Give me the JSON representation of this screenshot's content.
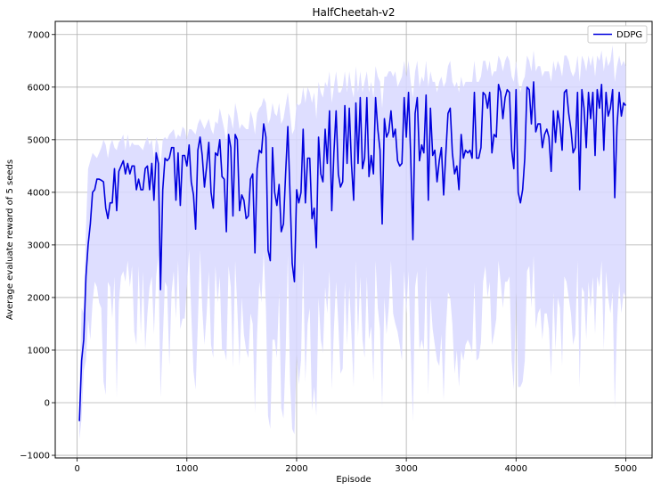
{
  "chart_data": {
    "type": "line",
    "title": "HalfCheetah-v2",
    "xlabel": "Episode",
    "ylabel": "Average evaluate reward of 5 seeds",
    "xlim": [
      -200,
      5240
    ],
    "ylim": [
      -1050,
      7250
    ],
    "xticks": [
      0,
      1000,
      2000,
      3000,
      4000,
      5000
    ],
    "yticks": [
      -1000,
      0,
      1000,
      2000,
      3000,
      4000,
      5000,
      6000,
      7000
    ],
    "xtick_labels": [
      "0",
      "1000",
      "2000",
      "3000",
      "4000",
      "5000"
    ],
    "ytick_labels": [
      "−1000",
      "0",
      "1000",
      "2000",
      "3000",
      "4000",
      "5000",
      "6000",
      "7000"
    ],
    "grid": true,
    "legend_position": "top-right",
    "series": [
      {
        "name": "DDPG",
        "color": "#0000dd",
        "band_color": "#d8d8ff",
        "x": [
          20,
          40,
          60,
          80,
          100,
          120,
          140,
          160,
          180,
          200,
          220,
          240,
          260,
          280,
          300,
          320,
          340,
          360,
          380,
          400,
          420,
          440,
          460,
          480,
          500,
          520,
          540,
          560,
          580,
          600,
          620,
          640,
          660,
          680,
          700,
          720,
          740,
          760,
          780,
          800,
          820,
          840,
          860,
          880,
          900,
          920,
          940,
          960,
          980,
          1000,
          1020,
          1040,
          1060,
          1080,
          1100,
          1120,
          1140,
          1160,
          1180,
          1200,
          1220,
          1240,
          1260,
          1280,
          1300,
          1320,
          1340,
          1360,
          1380,
          1400,
          1420,
          1440,
          1460,
          1480,
          1500,
          1520,
          1540,
          1560,
          1580,
          1600,
          1620,
          1640,
          1660,
          1680,
          1700,
          1720,
          1740,
          1760,
          1780,
          1800,
          1820,
          1840,
          1860,
          1880,
          1900,
          1920,
          1940,
          1960,
          1980,
          2000,
          2020,
          2040,
          2060,
          2080,
          2100,
          2120,
          2140,
          2160,
          2180,
          2200,
          2220,
          2240,
          2260,
          2280,
          2300,
          2320,
          2340,
          2360,
          2380,
          2400,
          2420,
          2440,
          2460,
          2480,
          2500,
          2520,
          2540,
          2560,
          2580,
          2600,
          2620,
          2640,
          2660,
          2680,
          2700,
          2720,
          2740,
          2760,
          2780,
          2800,
          2820,
          2840,
          2860,
          2880,
          2900,
          2920,
          2940,
          2960,
          2980,
          3000,
          3020,
          3040,
          3060,
          3080,
          3100,
          3120,
          3140,
          3160,
          3180,
          3200,
          3220,
          3240,
          3260,
          3280,
          3300,
          3320,
          3340,
          3360,
          3380,
          3400,
          3420,
          3440,
          3460,
          3480,
          3500,
          3520,
          3540,
          3560,
          3580,
          3600,
          3620,
          3640,
          3660,
          3680,
          3700,
          3720,
          3740,
          3760,
          3780,
          3800,
          3820,
          3840,
          3860,
          3880,
          3900,
          3920,
          3940,
          3960,
          3980,
          4000,
          4020,
          4040,
          4060,
          4080,
          4100,
          4120,
          4140,
          4160,
          4180,
          4200,
          4220,
          4240,
          4260,
          4280,
          4300,
          4320,
          4340,
          4360,
          4380,
          4400,
          4420,
          4440,
          4460,
          4480,
          4500,
          4520,
          4540,
          4560,
          4580,
          4600,
          4620,
          4640,
          4660,
          4680,
          4700,
          4720,
          4740,
          4760,
          4780,
          4800,
          4820,
          4840,
          4860,
          4880,
          4900,
          4920,
          4940,
          4960,
          4980,
          5000
        ],
        "y": [
          -350,
          800,
          1200,
          2400,
          3000,
          3400,
          4000,
          4050,
          4250,
          4250,
          4230,
          4200,
          3700,
          3500,
          3800,
          3800,
          4450,
          3650,
          4400,
          4500,
          4600,
          4350,
          4550,
          4350,
          4500,
          4500,
          4050,
          4250,
          4050,
          4050,
          4450,
          4500,
          4050,
          4550,
          3850,
          4750,
          4550,
          2150,
          4050,
          4650,
          4600,
          4650,
          4850,
          4850,
          3850,
          4750,
          3750,
          4700,
          4700,
          4500,
          4900,
          4200,
          3950,
          3300,
          4800,
          5050,
          4700,
          4100,
          4500,
          4950,
          4000,
          3700,
          4750,
          4700,
          5000,
          4300,
          4250,
          3250,
          5100,
          4850,
          3550,
          5100,
          5000,
          3650,
          3950,
          3850,
          3500,
          3550,
          4250,
          4350,
          2850,
          4450,
          4800,
          4750,
          5300,
          5050,
          2900,
          2700,
          4850,
          4000,
          3750,
          4150,
          3250,
          3400,
          4350,
          5250,
          3950,
          2650,
          2300,
          4050,
          3800,
          4000,
          5200,
          3800,
          4650,
          4650,
          3500,
          3700,
          2950,
          5050,
          4350,
          4200,
          5200,
          4550,
          5550,
          3650,
          4750,
          5550,
          4350,
          4100,
          4200,
          5650,
          4550,
          5600,
          4550,
          3850,
          5700,
          4550,
          5800,
          4450,
          4650,
          5800,
          4300,
          4700,
          4350,
          5800,
          5200,
          4800,
          3400,
          5400,
          5050,
          5150,
          5550,
          5050,
          5200,
          4600,
          4500,
          4550,
          5800,
          5050,
          5900,
          4700,
          3100,
          5500,
          5800,
          4600,
          4900,
          4750,
          5850,
          3850,
          5600,
          4700,
          4800,
          4200,
          4600,
          4850,
          3950,
          4750,
          5500,
          5600,
          4750,
          4350,
          4500,
          4050,
          5100,
          4650,
          4800,
          4750,
          4800,
          4650,
          5900,
          4650,
          4650,
          4850,
          5900,
          5850,
          5600,
          5900,
          4750,
          5100,
          5050,
          6050,
          5900,
          5400,
          5800,
          5950,
          5900,
          4800,
          4450,
          5950,
          4000,
          3800,
          4050,
          4650,
          6000,
          5950,
          5300,
          6100,
          5150,
          5300,
          5300,
          4850,
          5100,
          5200,
          5050,
          4400,
          5550,
          4950,
          5550,
          5300,
          4800,
          5900,
          5950,
          5500,
          5200,
          4750,
          4850,
          5900,
          4050,
          5950,
          5600,
          4850,
          5900,
          5400,
          5900,
          4700,
          5950,
          5600,
          6050,
          4800,
          5900,
          5450,
          5600,
          5950,
          3900,
          5250,
          5900,
          5450,
          5700,
          5650
        ],
        "lower": [
          -700,
          -300,
          600,
          800,
          1600,
          1200,
          1900,
          2300,
          2200,
          1900,
          1800,
          400,
          150,
          2300,
          2200,
          1600,
          2400,
          100,
          1900,
          2400,
          2500,
          2300,
          2700,
          2200,
          2600,
          1350,
          1100,
          2600,
          1300,
          2500,
          1000,
          1700,
          2200,
          2400,
          1300,
          2400,
          2800,
          100,
          1200,
          2300,
          2200,
          700,
          2100,
          2500,
          1600,
          2700,
          1400,
          1600,
          1600,
          2200,
          2900,
          1700,
          600,
          250,
          1500,
          2900,
          1800,
          1100,
          1700,
          2500,
          1100,
          850,
          2600,
          1900,
          2400,
          1000,
          1000,
          800,
          2600,
          2200,
          650,
          2700,
          1800,
          700,
          2000,
          1300,
          1000,
          850,
          1700,
          1500,
          -200,
          1300,
          2300,
          1900,
          2900,
          1800,
          -250,
          -500,
          1200,
          1200,
          850,
          2100,
          -100,
          -300,
          900,
          2800,
          400,
          -500,
          -600,
          900,
          350,
          800,
          2700,
          400,
          1500,
          1800,
          -150,
          300,
          -250,
          2000,
          1200,
          950,
          2200,
          1700,
          2500,
          250,
          1400,
          2300,
          1500,
          550,
          650,
          2300,
          1100,
          2200,
          1300,
          300,
          2700,
          1250,
          2400,
          1200,
          850,
          2400,
          1200,
          1450,
          400,
          2700,
          1800,
          1400,
          -100,
          2000,
          1300,
          1800,
          2700,
          1700,
          1500,
          1350,
          1100,
          800,
          2500,
          1700,
          2500,
          1000,
          -350,
          2200,
          2500,
          1000,
          1200,
          1000,
          2600,
          150,
          2000,
          1400,
          1100,
          800,
          700,
          1300,
          50,
          1400,
          2100,
          2000,
          1500,
          550,
          1000,
          300,
          1000,
          800,
          1100,
          1200,
          1100,
          950,
          2300,
          800,
          850,
          1150,
          2300,
          2600,
          2000,
          2300,
          1100,
          1300,
          1600,
          2700,
          2300,
          1800,
          2300,
          2300,
          2400,
          800,
          250,
          2100,
          300,
          300,
          400,
          800,
          2500,
          2600,
          1800,
          2800,
          1400,
          1700,
          1800,
          1200,
          1700,
          1700,
          1400,
          500,
          2100,
          1000,
          2000,
          1800,
          700,
          2400,
          2300,
          2000,
          1700,
          1100,
          1300,
          2700,
          300,
          2200,
          2100,
          1200,
          2300,
          1800,
          2400,
          1300,
          2400,
          2200,
          2700,
          1000,
          2500,
          2000,
          1700,
          2100,
          -100,
          1500,
          2300,
          1700,
          2100,
          2000
        ],
        "upper": [
          100,
          1800,
          1700,
          3300,
          4450,
          4600,
          4750,
          4700,
          4650,
          4750,
          4850,
          5000,
          4900,
          4650,
          4900,
          5000,
          4850,
          4800,
          4950,
          5000,
          5100,
          4800,
          5100,
          4850,
          4950,
          4900,
          4900,
          4900,
          4850,
          4800,
          4950,
          5050,
          4900,
          5000,
          4650,
          5050,
          4900,
          4500,
          5000,
          5050,
          5000,
          5100,
          5150,
          5200,
          5000,
          5100,
          5050,
          5250,
          5200,
          5000,
          5200,
          5200,
          5150,
          5100,
          5300,
          5400,
          5300,
          5200,
          5300,
          5400,
          5200,
          5100,
          5350,
          5300,
          5600,
          5400,
          5200,
          4950,
          5500,
          5400,
          5200,
          5700,
          5500,
          5200,
          5300,
          5250,
          5200,
          5200,
          5550,
          5400,
          5100,
          5500,
          5600,
          5650,
          5800,
          5700,
          5300,
          5400,
          5700,
          5500,
          5450,
          5700,
          5300,
          5400,
          5650,
          5900,
          5500,
          5100,
          5200,
          5700,
          5650,
          5700,
          6000,
          5700,
          6000,
          5900,
          5700,
          5900,
          5400,
          6100,
          5900,
          5800,
          6100,
          6000,
          6300,
          5700,
          6000,
          6300,
          5900,
          5900,
          6000,
          6300,
          5900,
          6300,
          6000,
          5800,
          6400,
          5900,
          6300,
          5900,
          6100,
          6300,
          5900,
          6100,
          5800,
          6400,
          6200,
          6100,
          5600,
          6200,
          6200,
          6300,
          6300,
          6200,
          6300,
          6000,
          6100,
          6200,
          6500,
          6200,
          6500,
          6100,
          5800,
          6300,
          6500,
          6000,
          6200,
          6100,
          6500,
          6000,
          6300,
          6100,
          6100,
          5900,
          6100,
          6200,
          6000,
          6100,
          6400,
          6500,
          6100,
          6000,
          6100,
          5900,
          6200,
          6000,
          6100,
          6100,
          6100,
          6100,
          6500,
          6100,
          6100,
          6200,
          6500,
          6500,
          6300,
          6500,
          6200,
          6300,
          6300,
          6600,
          6500,
          6300,
          6500,
          6600,
          6500,
          6200,
          6100,
          6500,
          6100,
          5900,
          6100,
          6200,
          6600,
          6500,
          6300,
          6700,
          6300,
          6400,
          6400,
          6200,
          6300,
          6300,
          6300,
          6100,
          6500,
          6300,
          6500,
          6400,
          6200,
          6600,
          6600,
          6500,
          6300,
          6200,
          6300,
          6600,
          6100,
          6600,
          6500,
          6300,
          6600,
          6400,
          6600,
          6200,
          6600,
          6500,
          6700,
          6300,
          6600,
          6400,
          6500,
          6800,
          6100,
          6400,
          6600,
          6400,
          6500,
          6400
        ]
      }
    ]
  }
}
